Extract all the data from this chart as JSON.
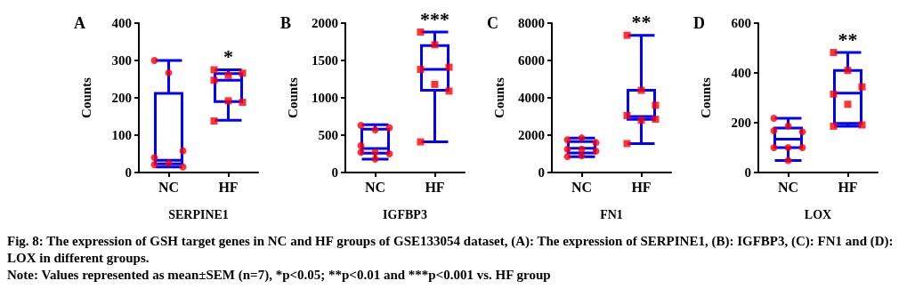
{
  "chart_data": [
    {
      "type": "box",
      "title": "A",
      "xlabel": "SERPINE1",
      "ylabel": "Counts",
      "categories": [
        "NC",
        "HF"
      ],
      "ylim": [
        0,
        400
      ],
      "yticks": [
        0,
        100,
        200,
        300,
        400
      ],
      "grid": false,
      "color": "#0000ff",
      "boxes": [
        {
          "low": 15,
          "q1": 23,
          "median": 33,
          "q3": 212,
          "high": 300
        },
        {
          "low": 140,
          "q1": 190,
          "median": 247,
          "q3": 265,
          "high": 275
        }
      ],
      "series": [
        {
          "type": "scatter",
          "color": "#ff0000",
          "marker": "circle",
          "x": [
            "NC",
            "NC",
            "NC",
            "NC",
            "NC",
            "NC",
            "NC"
          ],
          "values": [
            300,
            267,
            58,
            40,
            25,
            15,
            21
          ]
        },
        {
          "type": "scatter",
          "color": "#ff0000",
          "marker": "square",
          "x": [
            "HF",
            "HF",
            "HF",
            "HF",
            "HF",
            "HF",
            "HF"
          ],
          "values": [
            275,
            260,
            266,
            247,
            192,
            188,
            138
          ]
        }
      ],
      "annotations": [
        "*"
      ]
    },
    {
      "type": "box",
      "title": "B",
      "xlabel": "IGFBP3",
      "ylabel": "Counts",
      "categories": [
        "NC",
        "HF"
      ],
      "ylim": [
        0,
        2000
      ],
      "yticks": [
        0,
        500,
        1000,
        1500,
        2000
      ],
      "grid": false,
      "color": "#0000ff",
      "boxes": [
        {
          "low": 180,
          "q1": 260,
          "median": 320,
          "q3": 580,
          "high": 640
        },
        {
          "low": 410,
          "q1": 1100,
          "median": 1380,
          "q3": 1700,
          "high": 1880
        }
      ],
      "series": [
        {
          "type": "scatter",
          "color": "#ff0000",
          "marker": "circle",
          "x": [
            "NC",
            "NC",
            "NC",
            "NC",
            "NC",
            "NC",
            "NC",
            "NC"
          ],
          "values": [
            630,
            570,
            600,
            360,
            270,
            250,
            270,
            180
          ]
        },
        {
          "type": "scatter",
          "color": "#ff0000",
          "marker": "square",
          "x": [
            "HF",
            "HF",
            "HF",
            "HF",
            "HF",
            "HF",
            "HF"
          ],
          "values": [
            1880,
            1710,
            1410,
            1380,
            1180,
            1090,
            410
          ]
        }
      ],
      "annotations": [
        "***"
      ]
    },
    {
      "type": "box",
      "title": "C",
      "xlabel": "FN1",
      "ylabel": "Counts",
      "categories": [
        "NC",
        "HF"
      ],
      "ylim": [
        0,
        8000
      ],
      "yticks": [
        0,
        2000,
        4000,
        6000,
        8000
      ],
      "grid": false,
      "color": "#0000ff",
      "boxes": [
        {
          "low": 850,
          "q1": 1050,
          "median": 1300,
          "q3": 1650,
          "high": 1850
        },
        {
          "low": 1550,
          "q1": 2850,
          "median": 3000,
          "q3": 4400,
          "high": 7350
        }
      ],
      "series": [
        {
          "type": "scatter",
          "color": "#ff0000",
          "marker": "circle",
          "x": [
            "NC",
            "NC",
            "NC",
            "NC",
            "NC",
            "NC",
            "NC",
            "NC"
          ],
          "values": [
            1750,
            1850,
            1600,
            1250,
            1250,
            1150,
            850,
            900
          ]
        },
        {
          "type": "scatter",
          "color": "#ff0000",
          "marker": "square",
          "x": [
            "HF",
            "HF",
            "HF",
            "HF",
            "HF",
            "HF",
            "HF"
          ],
          "values": [
            7350,
            4400,
            3600,
            3050,
            2800,
            2850,
            1550
          ]
        }
      ],
      "annotations": [
        "**"
      ]
    },
    {
      "type": "box",
      "title": "D",
      "xlabel": "LOX",
      "ylabel": "Counts",
      "categories": [
        "NC",
        "HF"
      ],
      "ylim": [
        0,
        600
      ],
      "yticks": [
        0,
        200,
        400,
        600
      ],
      "grid": false,
      "color": "#0000ff",
      "boxes": [
        {
          "low": 48,
          "q1": 100,
          "median": 134,
          "q3": 179,
          "high": 218
        },
        {
          "low": 186,
          "q1": 197,
          "median": 319,
          "q3": 410,
          "high": 482
        }
      ],
      "series": [
        {
          "type": "scatter",
          "color": "#ff0000",
          "marker": "circle",
          "x": [
            "NC",
            "NC",
            "NC",
            "NC",
            "NC",
            "NC",
            "NC",
            "NC"
          ],
          "values": [
            218,
            187,
            163,
            168,
            100,
            100,
            100,
            48
          ]
        },
        {
          "type": "scatter",
          "color": "#ff0000",
          "marker": "square",
          "x": [
            "HF",
            "HF",
            "HF",
            "HF",
            "HF",
            "HF",
            "HF"
          ],
          "values": [
            482,
            410,
            344,
            315,
            274,
            191,
            186
          ]
        }
      ],
      "annotations": [
        "**"
      ]
    },
    {
      "type": "other",
      "annotations": [
        "Fig. 8: The expression of GSH target genes in NC and HF groups of GSE133054 dataset, (A): The expression of SERPINE1, (B): IGFBP3, (C): FN1 and (D): LOX in different groups.",
        "Note: Values represented as mean±SEM (n=7), *p<0.05; **p<0.01 and ***p<0.001 vs. HF group"
      ]
    }
  ]
}
